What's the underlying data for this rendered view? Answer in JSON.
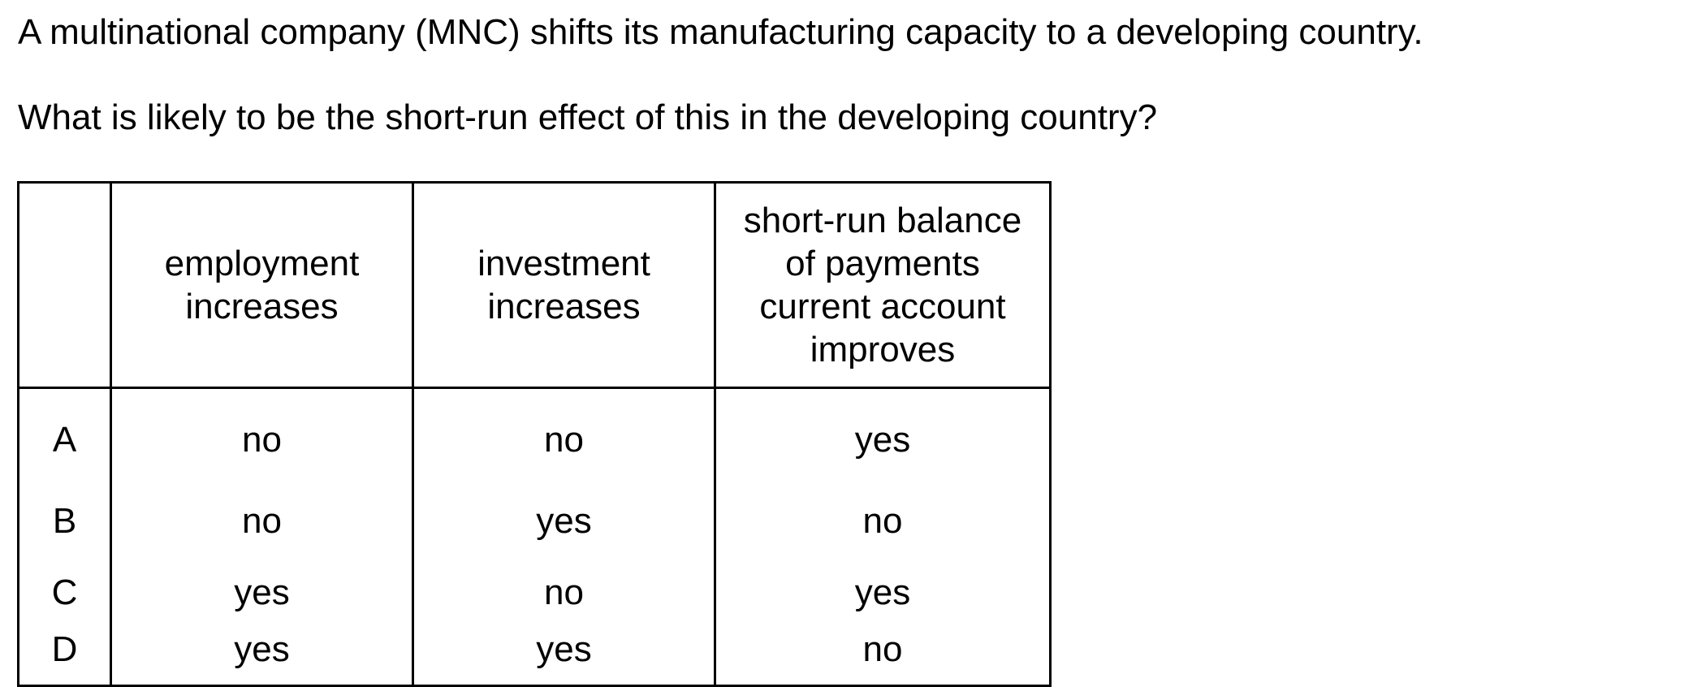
{
  "question": {
    "line1": "A multinational company (MNC) shifts its manufacturing capacity to a developing country.",
    "line2": "What is likely to be the short-run effect of this in the developing country?"
  },
  "table": {
    "headers": [
      "",
      "employment\nincreases",
      "investment\nincreases",
      "short-run balance\nof payments\ncurrent account\nimproves"
    ],
    "rows": [
      {
        "option": "A",
        "values": [
          "no",
          "no",
          "yes"
        ]
      },
      {
        "option": "B",
        "values": [
          "no",
          "yes",
          "no"
        ]
      },
      {
        "option": "C",
        "values": [
          "yes",
          "no",
          "yes"
        ]
      },
      {
        "option": "D",
        "values": [
          "yes",
          "yes",
          "no"
        ]
      }
    ]
  }
}
